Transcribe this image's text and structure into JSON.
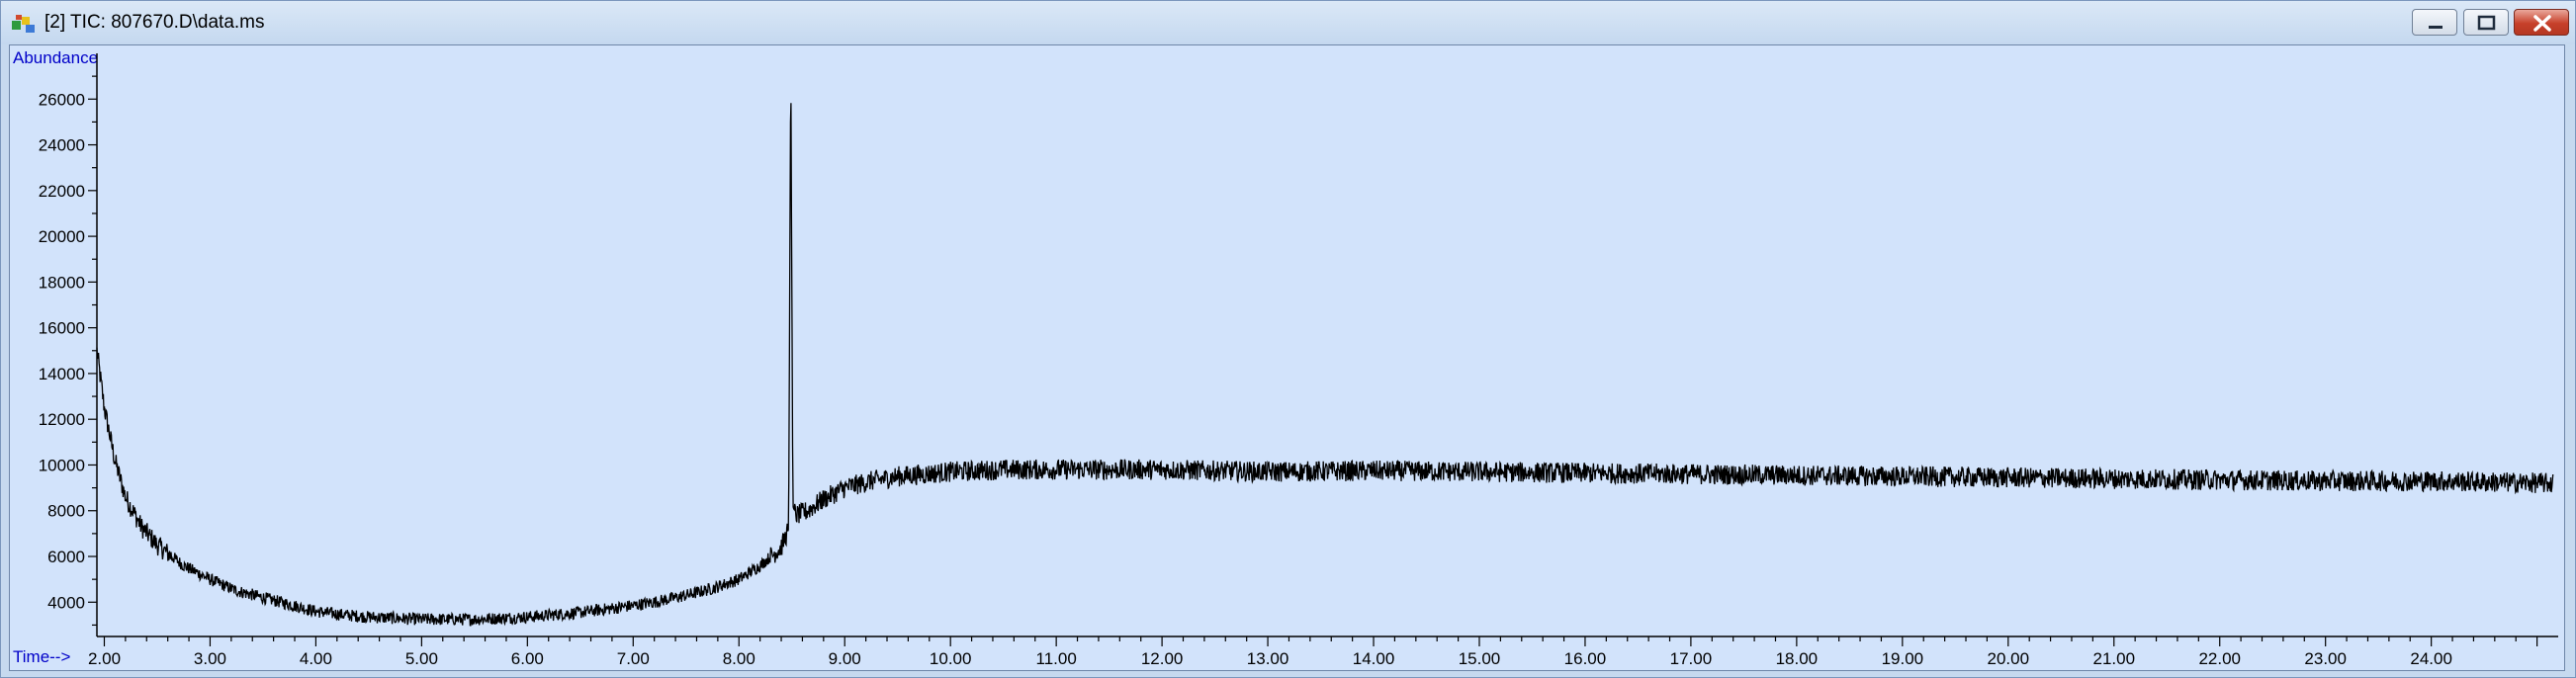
{
  "window": {
    "title": "[2] TIC: 807670.D\\data.ms",
    "controls": [
      "minimize",
      "maximize",
      "close"
    ],
    "icon": "chromatogram-app-icon"
  },
  "colors": {
    "plot_background": "#d2e3fb",
    "trace": "#000000",
    "axis_label": "#0000c8"
  },
  "chart_data": {
    "type": "line",
    "title": "",
    "xlabel": "Time-->",
    "ylabel": "Abundance",
    "xlim": [
      1.93,
      25.2
    ],
    "ylim": [
      2500,
      28000
    ],
    "x_ticks": [
      "2.00",
      "3.00",
      "4.00",
      "5.00",
      "6.00",
      "7.00",
      "8.00",
      "9.00",
      "10.00",
      "11.00",
      "12.00",
      "13.00",
      "14.00",
      "15.00",
      "16.00",
      "17.00",
      "18.00",
      "19.00",
      "20.00",
      "21.00",
      "22.00",
      "23.00",
      "24.00"
    ],
    "y_ticks": [
      "4000",
      "6000",
      "8000",
      "10000",
      "12000",
      "14000",
      "16000",
      "18000",
      "20000",
      "22000",
      "24000",
      "26000"
    ],
    "grid": false,
    "legend": "none",
    "series": [
      {
        "values_description_free": true,
        "x": [
          1.93,
          2.0,
          2.1,
          2.2,
          2.35,
          2.5,
          2.75,
          3.0,
          3.25,
          3.5,
          3.75,
          4.0,
          4.25,
          4.5,
          4.75,
          5.0,
          5.25,
          5.5,
          5.75,
          6.0,
          6.25,
          6.5,
          6.75,
          7.0,
          7.25,
          7.5,
          7.75,
          8.0,
          8.2,
          8.4,
          8.47,
          8.49,
          8.5,
          8.51,
          8.53,
          8.55,
          8.65,
          8.8,
          9.0,
          9.25,
          9.5,
          9.75,
          10.0,
          10.5,
          11.0,
          12.0,
          13.0,
          14.0,
          15.0,
          16.0,
          17.0,
          18.0,
          19.0,
          20.0,
          21.0,
          22.0,
          23.0,
          24.0,
          25.15
        ],
        "y": [
          15000,
          12500,
          10200,
          8600,
          7300,
          6500,
          5600,
          5000,
          4500,
          4200,
          3900,
          3600,
          3450,
          3350,
          3300,
          3250,
          3250,
          3250,
          3300,
          3350,
          3450,
          3550,
          3700,
          3850,
          4050,
          4300,
          4600,
          5000,
          5600,
          6400,
          7200,
          28000,
          18000,
          8200,
          7900,
          7800,
          8000,
          8500,
          9000,
          9300,
          9500,
          9600,
          9700,
          9800,
          9800,
          9800,
          9700,
          9750,
          9700,
          9650,
          9600,
          9550,
          9500,
          9450,
          9400,
          9350,
          9300,
          9300,
          9200
        ]
      }
    ],
    "noise_amplitude": 450
  }
}
